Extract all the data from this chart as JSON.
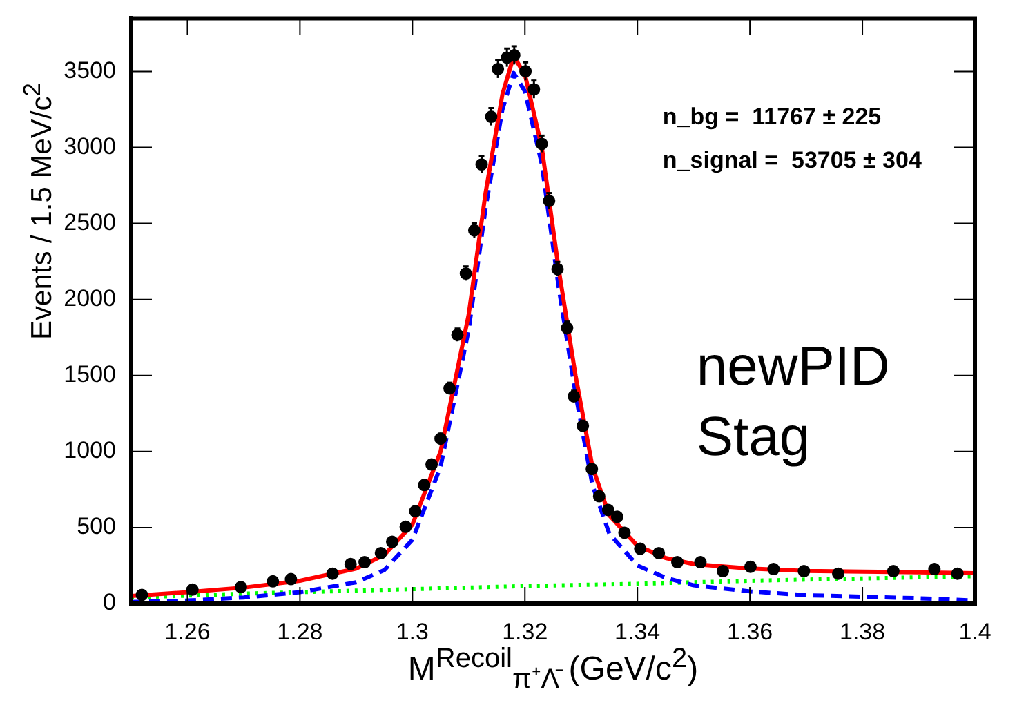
{
  "chart_data": {
    "type": "scatter",
    "xlabel": "M$^{Recoil}$$_{π⁺Λ̄}$ (GeV/c$^{2}$)",
    "ylabel": "Events / 1.5 MeV/c$^{2}$",
    "xlim": [
      1.25,
      1.4
    ],
    "ylim": [
      0,
      3850
    ],
    "xticks": [
      1.26,
      1.28,
      1.3,
      1.32,
      1.34,
      1.36,
      1.38,
      1.4
    ],
    "yticks": [
      0,
      500,
      1000,
      1500,
      2000,
      2500,
      3000,
      3500
    ],
    "grid": false,
    "legend": false,
    "annotations": [
      "n_bg =  11767 ± 225",
      "n_signal =  53705 ± 304",
      "newPID",
      "Stag"
    ],
    "series": [
      {
        "color": "#000000",
        "marker": "circle",
        "x": [
          1.2519,
          1.2609,
          1.2695,
          1.2752,
          1.2784,
          1.2858,
          1.289,
          1.2915,
          1.2944,
          1.2964,
          1.2988,
          1.3005,
          1.3021,
          1.3034,
          1.305,
          1.3066,
          1.308,
          1.3095,
          1.311,
          1.3123,
          1.314,
          1.3152,
          1.3168,
          1.3181,
          1.3201,
          1.3216,
          1.323,
          1.3243,
          1.3258,
          1.3275,
          1.3287,
          1.3303,
          1.3319,
          1.3332,
          1.3348,
          1.3364,
          1.3377,
          1.3405,
          1.3438,
          1.3471,
          1.3512,
          1.3552,
          1.3601,
          1.3642,
          1.3696,
          1.3757,
          1.3855,
          1.3928,
          1.3969
        ],
        "values": [
          57,
          92,
          108,
          146,
          161,
          197,
          260,
          272,
          332,
          406,
          505,
          607,
          780,
          915,
          1085,
          1415,
          1767,
          2171,
          2455,
          2888,
          3202,
          3516,
          3591,
          3606,
          3501,
          3382,
          3023,
          2649,
          2200,
          1812,
          1363,
          1169,
          885,
          706,
          616,
          571,
          466,
          361,
          332,
          272,
          272,
          213,
          242,
          227,
          213,
          197,
          213,
          227,
          197
        ],
        "errors": [
          8,
          10,
          10,
          12,
          13,
          14,
          16,
          16,
          18,
          20,
          22,
          25,
          28,
          30,
          33,
          38,
          42,
          47,
          50,
          54,
          57,
          59,
          60,
          60,
          59,
          58,
          55,
          51,
          47,
          43,
          37,
          34,
          30,
          27,
          25,
          24,
          22,
          19,
          18,
          16,
          16,
          15,
          16,
          15,
          15,
          14,
          15,
          15,
          14
        ]
      },
      {
        "type": "line",
        "color": "#ff0000",
        "line_style": "solid",
        "marker": "none",
        "x": [
          1.25,
          1.26,
          1.27,
          1.28,
          1.29,
          1.295,
          1.3,
          1.305,
          1.31,
          1.313,
          1.316,
          1.318,
          1.32,
          1.323,
          1.326,
          1.329,
          1.332,
          1.335,
          1.34,
          1.345,
          1.35,
          1.36,
          1.37,
          1.38,
          1.39,
          1.4
        ],
        "values": [
          50,
          75,
          105,
          150,
          230,
          320,
          520,
          1000,
          1900,
          2700,
          3350,
          3600,
          3480,
          3000,
          2200,
          1500,
          900,
          580,
          380,
          300,
          260,
          230,
          215,
          210,
          205,
          200
        ]
      },
      {
        "type": "line",
        "color": "#0000ff",
        "line_style": "dashed",
        "marker": "none",
        "x": [
          1.25,
          1.26,
          1.27,
          1.28,
          1.29,
          1.295,
          1.3,
          1.305,
          1.31,
          1.313,
          1.316,
          1.318,
          1.32,
          1.323,
          1.326,
          1.329,
          1.332,
          1.335,
          1.34,
          1.345,
          1.35,
          1.36,
          1.37,
          1.38,
          1.39,
          1.4
        ],
        "values": [
          10,
          20,
          40,
          75,
          140,
          220,
          420,
          900,
          1800,
          2600,
          3250,
          3490,
          3370,
          2890,
          2080,
          1380,
          780,
          460,
          250,
          170,
          120,
          80,
          55,
          45,
          35,
          20
        ]
      },
      {
        "type": "line",
        "color": "#00ff00",
        "line_style": "dotted",
        "marker": "none",
        "x": [
          1.25,
          1.27,
          1.29,
          1.3,
          1.32,
          1.34,
          1.36,
          1.38,
          1.4
        ],
        "values": [
          40,
          65,
          85,
          95,
          115,
          130,
          150,
          165,
          180
        ]
      }
    ]
  }
}
